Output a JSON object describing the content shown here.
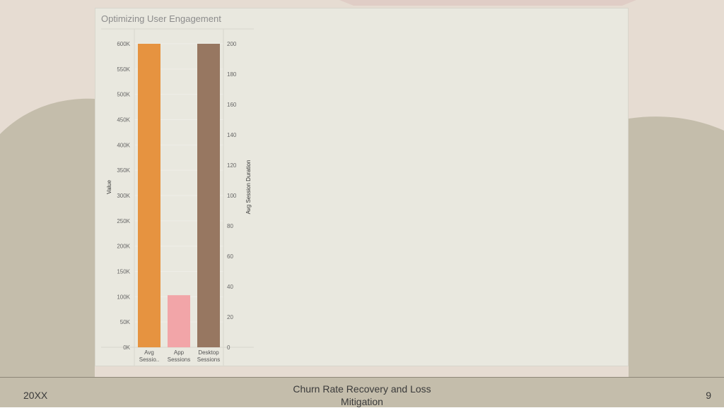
{
  "slide": {
    "footer_left": "20XX",
    "footer_center": "Churn Rate Recovery and Loss Mitigation",
    "page_number": "9"
  },
  "colors": {
    "background": "#e6dcd2",
    "wave": "#c4bdab",
    "panel": "#e9e8df"
  },
  "chart_data": {
    "type": "bar",
    "title": "Optimizing User Engagement",
    "categories": [
      "Avg Sessio..",
      "App Sessions",
      "Desktop Sessions"
    ],
    "category_lines": [
      [
        "Avg",
        "Sessio.."
      ],
      [
        "App",
        "Sessions"
      ],
      [
        "Desktop",
        "Sessions"
      ]
    ],
    "series": [
      {
        "axis": "left",
        "values": [
          600000,
          103000,
          null
        ],
        "colors": [
          "#e69340",
          "#f2a5a8",
          null
        ]
      },
      {
        "axis": "right",
        "values": [
          null,
          null,
          200
        ],
        "colors": [
          null,
          null,
          "#977761"
        ]
      }
    ],
    "ylabel": "Value",
    "y2label": "Avg Session Duration",
    "ylim": [
      0,
      600000
    ],
    "y2lim": [
      0,
      200
    ],
    "yticks": [
      0,
      50000,
      100000,
      150000,
      200000,
      250000,
      300000,
      350000,
      400000,
      450000,
      500000,
      550000,
      600000
    ],
    "ytick_labels": [
      "0K",
      "50K",
      "100K",
      "150K",
      "200K",
      "250K",
      "300K",
      "350K",
      "400K",
      "450K",
      "500K",
      "550K",
      "600K"
    ],
    "y2ticks": [
      0,
      20,
      40,
      60,
      80,
      100,
      120,
      140,
      160,
      180,
      200
    ],
    "y2tick_labels": [
      "0",
      "20",
      "40",
      "60",
      "80",
      "100",
      "120",
      "140",
      "160",
      "180",
      "200"
    ],
    "grid": true,
    "legend": "none"
  }
}
